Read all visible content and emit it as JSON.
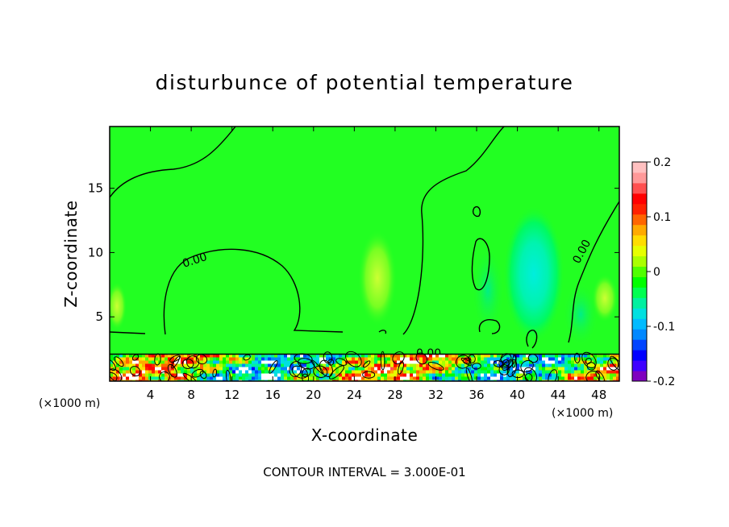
{
  "chart_data": {
    "type": "heatmap",
    "title": "disturbunce of potential temperature",
    "xlabel": "X-coordinate",
    "ylabel": "Z-coordinate",
    "x_unit": "(×1000 m)",
    "z_unit": "(×1000 m)",
    "xlim": [
      0,
      50
    ],
    "ylim": [
      0,
      19.8
    ],
    "x_ticks": [
      4,
      8,
      12,
      16,
      20,
      24,
      28,
      32,
      36,
      40,
      44,
      48
    ],
    "y_ticks": [
      5,
      10,
      15
    ],
    "colorbar": {
      "range": [
        -0.2,
        0.2
      ],
      "ticks": [
        "0.2",
        "0.1",
        "0",
        "-0.1",
        "-0.2"
      ],
      "colors": [
        "#7f00bf",
        "#3f00ff",
        "#0000ff",
        "#0044ff",
        "#0088ff",
        "#00bbff",
        "#00e0e0",
        "#00f0a0",
        "#00ff50",
        "#00ff00",
        "#50ff00",
        "#aaff00",
        "#e6ff00",
        "#ffdd00",
        "#ffaa00",
        "#ff6600",
        "#ff2200",
        "#ff0000",
        "#ff5050",
        "#ff9999",
        "#ffc0c0"
      ]
    },
    "background_value": 0,
    "boundary_layer_top_km": 2.1,
    "contour_labels": [
      "0.00",
      "0.00",
      "0.00"
    ],
    "contour_interval_note": "CONTOUR INTERVAL = 3.000E-01"
  }
}
